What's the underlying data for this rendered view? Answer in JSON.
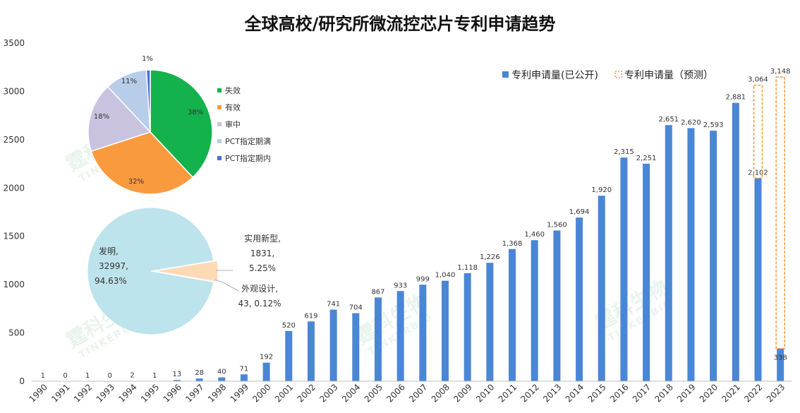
{
  "chart_data": [
    {
      "type": "bar",
      "title": "全球高校/研究所微流控芯片专利申请趋势",
      "categories": [
        "1990",
        "1991",
        "1992",
        "1993",
        "1994",
        "1995",
        "1996",
        "1997",
        "1998",
        "1999",
        "2000",
        "2001",
        "2002",
        "2003",
        "2004",
        "2005",
        "2006",
        "2007",
        "2008",
        "2009",
        "2010",
        "2011",
        "2012",
        "2013",
        "2014",
        "2015",
        "2016",
        "2017",
        "2018",
        "2019",
        "2020",
        "2021",
        "2022",
        "2023"
      ],
      "ylim": [
        0,
        3500
      ],
      "yticks": [
        0,
        500,
        1000,
        1500,
        2000,
        2500,
        3000,
        3500
      ],
      "grid": false,
      "legend_position": "top-right",
      "series": [
        {
          "name": "专利申请量(已公开)",
          "color": "#4a86d6",
          "values": [
            1,
            0,
            1,
            0,
            2,
            1,
            13,
            28,
            40,
            71,
            192,
            520,
            619,
            741,
            704,
            867,
            933,
            999,
            1040,
            1118,
            1226,
            1368,
            1460,
            1560,
            1694,
            1920,
            2315,
            2251,
            2651,
            2620,
            2593,
            2881,
            2102,
            338
          ],
          "labels": [
            "1",
            "0",
            "1",
            "0",
            "2",
            "1",
            "13",
            "28",
            "40",
            "71",
            "192",
            "520",
            "619",
            "741",
            "704",
            "867",
            "933",
            "999",
            "1,040",
            "1,118",
            "1,226",
            "1,368",
            "1,460",
            "1,560",
            "1,694",
            "1,920",
            "2,315",
            "2,251",
            "2,651",
            "2,620",
            "2,593",
            "2,881",
            "2,102",
            "338"
          ]
        },
        {
          "name": "专利申请量（预测）",
          "color": "#f59a3c",
          "style": "dashed",
          "points": [
            {
              "category": "2022",
              "value": 3064,
              "label": "3,064"
            },
            {
              "category": "2023",
              "value": 3148,
              "label": "3,148"
            }
          ]
        }
      ]
    },
    {
      "type": "pie",
      "slices": [
        {
          "label": "失效",
          "value": 38,
          "pct_label": "38%",
          "color": "#14b24c"
        },
        {
          "label": "有效",
          "value": 32,
          "pct_label": "32%",
          "color": "#f99a3e"
        },
        {
          "label": "审中",
          "value": 18,
          "pct_label": "18%",
          "color": "#c9c3e0"
        },
        {
          "label": "PCT指定期满",
          "value": 11,
          "pct_label": "11%",
          "color": "#b7cde8"
        },
        {
          "label": "PCT指定期内",
          "value": 1,
          "pct_label": "1%",
          "color": "#4a6fd1"
        }
      ]
    },
    {
      "type": "pie",
      "slices": [
        {
          "label": "发明,",
          "value": 32997,
          "value_label": "32997,",
          "pct_label": "94.63%",
          "color": "#bde3ec"
        },
        {
          "label": "实用新型,",
          "value": 1831,
          "value_label": "1831,",
          "pct_label": "5.25%",
          "color": "#fdd9b6"
        },
        {
          "label": "外观设计,",
          "value": 43,
          "value_label": "43, 0.12%",
          "pct_label": "0.12%",
          "color": "#a9a9a9"
        }
      ]
    }
  ],
  "watermark": {
    "cn": "霆科生物",
    "en": "TINKERBIO"
  }
}
